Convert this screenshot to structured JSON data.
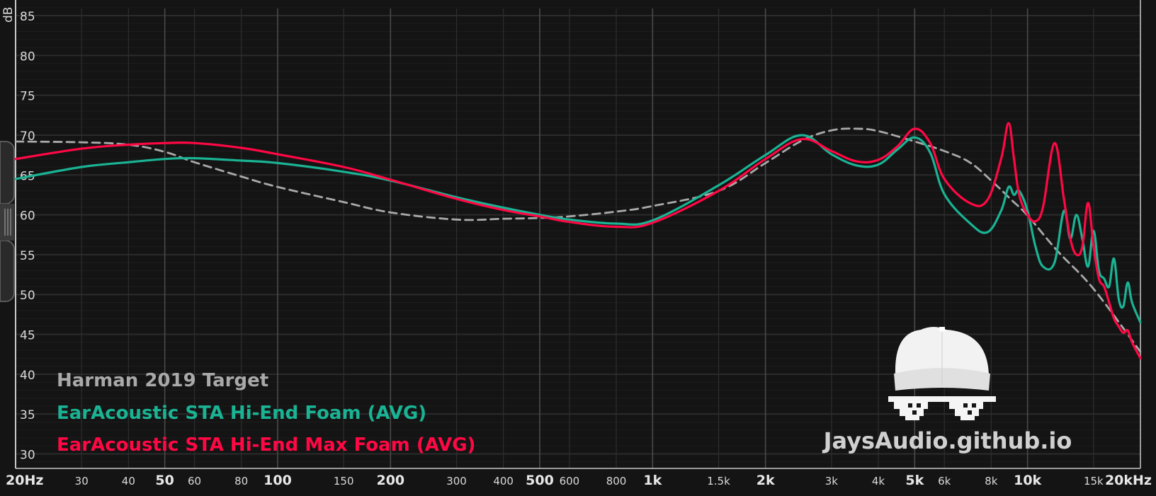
{
  "chart_data": {
    "type": "line",
    "ylabel": "dB",
    "ylim": [
      28,
      87
    ],
    "xlim": [
      20,
      20000
    ],
    "xscale": "log",
    "grid": true,
    "yticks": [
      30,
      35,
      40,
      45,
      50,
      55,
      60,
      65,
      70,
      75,
      80,
      85
    ],
    "xticks": [
      {
        "v": 20,
        "label": "20Hz",
        "major": true
      },
      {
        "v": 30,
        "label": "30",
        "major": false
      },
      {
        "v": 40,
        "label": "40",
        "major": false
      },
      {
        "v": 50,
        "label": "50",
        "major": true
      },
      {
        "v": 60,
        "label": "60",
        "major": false
      },
      {
        "v": 80,
        "label": "80",
        "major": false
      },
      {
        "v": 100,
        "label": "100",
        "major": true
      },
      {
        "v": 150,
        "label": "150",
        "major": false
      },
      {
        "v": 200,
        "label": "200",
        "major": true
      },
      {
        "v": 300,
        "label": "300",
        "major": false
      },
      {
        "v": 400,
        "label": "400",
        "major": false
      },
      {
        "v": 500,
        "label": "500",
        "major": true
      },
      {
        "v": 600,
        "label": "600",
        "major": false
      },
      {
        "v": 800,
        "label": "800",
        "major": false
      },
      {
        "v": 1000,
        "label": "1k",
        "major": true
      },
      {
        "v": 1500,
        "label": "1.5k",
        "major": false
      },
      {
        "v": 2000,
        "label": "2k",
        "major": true
      },
      {
        "v": 3000,
        "label": "3k",
        "major": false
      },
      {
        "v": 4000,
        "label": "4k",
        "major": false
      },
      {
        "v": 5000,
        "label": "5k",
        "major": true
      },
      {
        "v": 6000,
        "label": "6k",
        "major": false
      },
      {
        "v": 8000,
        "label": "8k",
        "major": false
      },
      {
        "v": 10000,
        "label": "10k",
        "major": true
      },
      {
        "v": 15000,
        "label": "15k",
        "major": false
      },
      {
        "v": 20000,
        "label": "20kHz",
        "major": true
      }
    ],
    "legend_placement": "bottom-left",
    "series": [
      {
        "name": "Harman 2019 Target",
        "color": "#a9a9a9",
        "dashed": true,
        "x": [
          20,
          30,
          40,
          50,
          60,
          80,
          100,
          150,
          200,
          300,
          400,
          500,
          600,
          800,
          1000,
          1500,
          2000,
          2500,
          3000,
          3500,
          4000,
          5000,
          6000,
          7000,
          8000,
          9000,
          10000,
          12000,
          15000,
          20000
        ],
        "y": [
          69.2,
          69.1,
          68.8,
          67.9,
          66.6,
          64.8,
          63.5,
          61.6,
          60.3,
          59.4,
          59.5,
          59.6,
          59.8,
          60.4,
          61.1,
          63.0,
          66.5,
          69.3,
          70.6,
          70.8,
          70.5,
          69.2,
          68.0,
          66.6,
          64.3,
          62.0,
          59.9,
          55.5,
          50.7,
          42.8
        ]
      },
      {
        "name": "EarAcoustic STA Hi-End Foam (AVG)",
        "color": "#1ab394",
        "dashed": false,
        "x": [
          20,
          30,
          40,
          50,
          60,
          80,
          100,
          150,
          200,
          300,
          400,
          500,
          600,
          800,
          1000,
          1500,
          2000,
          2500,
          3000,
          3500,
          4000,
          4500,
          5000,
          5500,
          6000,
          7000,
          7800,
          8500,
          8900,
          9200,
          9500,
          10000,
          10500,
          11000,
          11800,
          12500,
          13000,
          13500,
          14000,
          14500,
          15000,
          15500,
          16000,
          16500,
          17000,
          17500,
          18000,
          18500,
          19000,
          20000
        ],
        "y": [
          64.5,
          66.0,
          66.6,
          67.0,
          67.1,
          66.8,
          66.5,
          65.4,
          64.3,
          62.2,
          60.9,
          60.0,
          59.4,
          58.9,
          59.3,
          63.7,
          67.5,
          70.0,
          67.6,
          66.2,
          66.3,
          68.2,
          69.7,
          67.8,
          62.6,
          59.0,
          57.8,
          60.5,
          63.5,
          62.5,
          63.0,
          60.5,
          56.0,
          53.5,
          54.0,
          60.5,
          57.0,
          60.0,
          57.0,
          53.5,
          58.0,
          53.0,
          52.0,
          51.0,
          54.5,
          49.5,
          48.5,
          51.5,
          49.0,
          46.5
        ]
      },
      {
        "name": "EarAcoustic STA Hi-End Max Foam (AVG)",
        "color": "#ff0844",
        "dashed": false,
        "x": [
          20,
          30,
          40,
          50,
          60,
          80,
          100,
          150,
          200,
          300,
          400,
          500,
          600,
          800,
          1000,
          1500,
          2000,
          2500,
          3000,
          3500,
          4000,
          4500,
          5000,
          5500,
          6000,
          7000,
          7800,
          8500,
          8900,
          9200,
          9500,
          10000,
          10500,
          11000,
          11800,
          12500,
          13000,
          13500,
          14000,
          14500,
          15000,
          15500,
          16000,
          16500,
          17000,
          17500,
          18000,
          18500,
          19000,
          20000
        ],
        "y": [
          67.0,
          68.3,
          68.8,
          69.0,
          69.0,
          68.4,
          67.6,
          66.0,
          64.4,
          62.0,
          60.6,
          59.8,
          59.1,
          58.5,
          59.0,
          63.0,
          67.0,
          69.5,
          68.0,
          66.7,
          66.9,
          68.6,
          70.8,
          69.0,
          64.5,
          61.5,
          61.8,
          67.0,
          71.5,
          67.0,
          62.5,
          60.0,
          59.2,
          61.0,
          69.0,
          62.0,
          57.0,
          55.0,
          56.0,
          61.5,
          56.0,
          52.0,
          51.0,
          49.0,
          47.0,
          46.0,
          45.2,
          45.5,
          44.0,
          42.0
        ]
      }
    ]
  },
  "watermark": "JaysAudio.github.io"
}
